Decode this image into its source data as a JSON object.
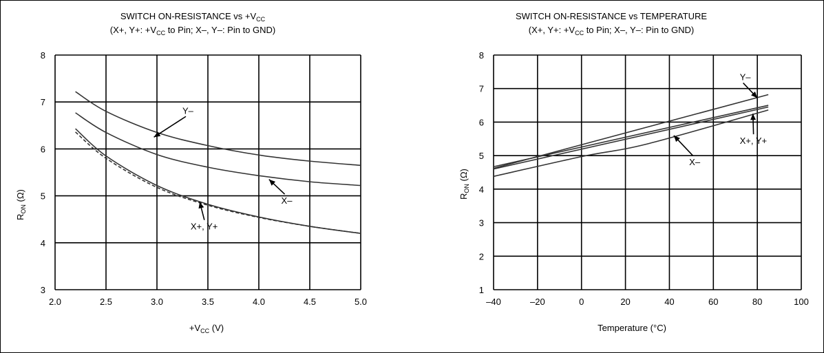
{
  "chart_data": [
    {
      "type": "line",
      "title_main": "SWITCH ON-RESISTANCE vs +V",
      "title_main_sub": "CC",
      "subtitle_a": "(X+, Y+: +V",
      "subtitle_sub1": "CC",
      "subtitle_b": " to Pin; X–, Y–: Pin to GND)",
      "xlabel_a": "+V",
      "xlabel_sub": "CC",
      "xlabel_b": " (V)",
      "ylabel_a": "R",
      "ylabel_sub": "ON",
      "ylabel_b": " (Ω)",
      "xlim": [
        2.0,
        5.0
      ],
      "ylim": [
        3,
        8
      ],
      "xticks": [
        "2.0",
        "2.5",
        "3.0",
        "3.5",
        "4.0",
        "4.5",
        "5.0"
      ],
      "yticks": [
        "3",
        "4",
        "5",
        "6",
        "7",
        "8"
      ],
      "grid": true,
      "series": [
        {
          "name": "Y–",
          "style": "solid",
          "x": [
            2.2,
            2.5,
            3.0,
            3.5,
            4.0,
            4.5,
            5.0
          ],
          "y": [
            7.22,
            6.8,
            6.35,
            6.07,
            5.87,
            5.74,
            5.65
          ]
        },
        {
          "name": "X–",
          "style": "solid",
          "x": [
            2.2,
            2.5,
            3.0,
            3.5,
            4.0,
            4.5,
            5.0
          ],
          "y": [
            6.77,
            6.35,
            5.88,
            5.61,
            5.43,
            5.3,
            5.22
          ]
        },
        {
          "name": "X+, Y+",
          "style": "solid",
          "x": [
            2.2,
            2.5,
            3.0,
            3.5,
            4.0,
            4.5,
            5.0
          ],
          "y": [
            6.43,
            5.85,
            5.22,
            4.82,
            4.55,
            4.35,
            4.2
          ]
        },
        {
          "name": "",
          "style": "dashed",
          "x": [
            2.2,
            2.5,
            3.0,
            3.5,
            4.0,
            4.5,
            5.0
          ],
          "y": [
            6.36,
            5.8,
            5.18,
            4.8,
            4.54,
            4.35,
            4.2
          ]
        }
      ],
      "annotations": [
        {
          "text": "Y–",
          "label_at": [
            3.25,
            6.75
          ],
          "arrow_to": [
            2.97,
            6.25
          ]
        },
        {
          "text": "X–",
          "label_at": [
            4.22,
            4.83
          ],
          "arrow_to": [
            4.1,
            5.35
          ]
        },
        {
          "text": "X+, Y+",
          "label_at": [
            3.33,
            4.28
          ],
          "arrow_to": [
            3.42,
            4.87
          ]
        }
      ]
    },
    {
      "type": "line",
      "title_main": "SWITCH ON-RESISTANCE vs TEMPERATURE",
      "subtitle_a": "(X+, Y+: +V",
      "subtitle_sub1": "CC",
      "subtitle_b": " to Pin; X–, Y–: Pin to GND)",
      "xlabel_a": "Temperature (°C)",
      "ylabel_a": "R",
      "ylabel_sub": "ON",
      "ylabel_b": " (Ω)",
      "xlim": [
        -40,
        100
      ],
      "ylim": [
        1,
        8
      ],
      "xticks": [
        "–40",
        "–20",
        "0",
        "20",
        "40",
        "60",
        "80",
        "100"
      ],
      "yticks": [
        "1",
        "2",
        "3",
        "4",
        "5",
        "6",
        "7",
        "8"
      ],
      "grid": true,
      "series": [
        {
          "name": "Y–",
          "style": "solid",
          "x": [
            -40,
            85
          ],
          "y": [
            4.62,
            6.82
          ]
        },
        {
          "name": "X+, Y+",
          "style": "solid",
          "x": [
            -40,
            85
          ],
          "y": [
            4.67,
            6.5
          ]
        },
        {
          "name": "",
          "style": "solid",
          "x": [
            -40,
            85
          ],
          "y": [
            4.6,
            6.45
          ]
        },
        {
          "name": "X–",
          "style": "solid",
          "x": [
            -40,
            0,
            30,
            85
          ],
          "y": [
            4.38,
            4.97,
            5.35,
            6.36
          ]
        }
      ],
      "annotations": [
        {
          "text": "Y–",
          "label_at": [
            72,
            7.25
          ],
          "arrow_to": [
            80,
            6.72
          ]
        },
        {
          "text": "X+, Y+",
          "label_at": [
            72,
            5.35
          ],
          "arrow_to": [
            78,
            6.25
          ]
        },
        {
          "text": "X–",
          "label_at": [
            49,
            4.72
          ],
          "arrow_to": [
            42,
            5.6
          ]
        }
      ]
    }
  ]
}
